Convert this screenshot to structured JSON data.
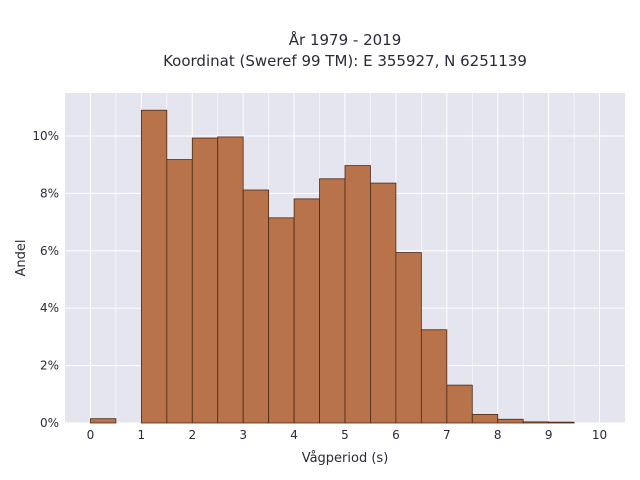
{
  "chart_data": {
    "type": "bar",
    "title_line1": "År 1979 - 2019",
    "title_line2": "Koordinat (Sweref 99 TM): E 355927, N 6251139",
    "xlabel": "Vågperiod (s)",
    "ylabel": "Andel",
    "bin_width": 0.5,
    "bin_starts": [
      0,
      0.5,
      1,
      1.5,
      2,
      2.5,
      3,
      3.5,
      4,
      4.5,
      5,
      5.5,
      6,
      6.5,
      7,
      7.5,
      8,
      8.5,
      9,
      9.5
    ],
    "values": [
      0.0015,
      0,
      0.109,
      0.0918,
      0.0993,
      0.0997,
      0.0812,
      0.0715,
      0.0781,
      0.0851,
      0.0897,
      0.0836,
      0.0594,
      0.0325,
      0.0132,
      0.003,
      0.0013,
      0.0004,
      0.0003,
      0
    ],
    "xlim": [
      -0.5,
      10.5
    ],
    "ylim": [
      0,
      0.115
    ],
    "x_ticks": [
      0,
      1,
      2,
      3,
      4,
      5,
      6,
      7,
      8,
      9,
      10
    ],
    "x_tick_labels": [
      "0",
      "1",
      "2",
      "3",
      "4",
      "5",
      "6",
      "7",
      "8",
      "9",
      "10"
    ],
    "y_ticks": [
      0,
      0.02,
      0.04,
      0.06,
      0.08,
      0.1
    ],
    "y_tick_labels": [
      "0%",
      "2%",
      "4%",
      "6%",
      "8%",
      "10%"
    ],
    "grid": true,
    "colors": {
      "bar_fill": "#b8734a",
      "bar_edge": "#4a2a18",
      "plot_bg": "#e5e5f0",
      "grid": "#ffffff"
    }
  }
}
